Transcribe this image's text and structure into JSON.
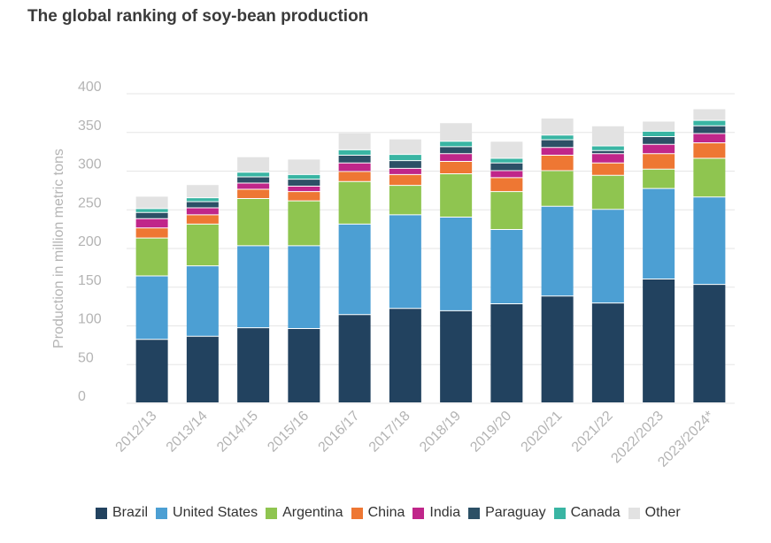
{
  "title": "The global ranking of soy-bean production",
  "chart_data": {
    "type": "bar",
    "stacked": true,
    "title": "The global ranking of soy-bean production",
    "xlabel": "",
    "ylabel": "Production in million metric tons",
    "ylim": [
      0,
      400
    ],
    "yticks": [
      0,
      50,
      100,
      150,
      200,
      250,
      300,
      350,
      400
    ],
    "grid": true,
    "legend_position": "bottom",
    "categories": [
      "2012/13",
      "2013/14",
      "2014/15",
      "2015/16",
      "2016/17",
      "2017/18",
      "2018/19",
      "2019/20",
      "2020/21",
      "2021/22",
      "2022/2023",
      "2023/2024*"
    ],
    "series": [
      {
        "name": "Brazil",
        "color": "#22425f",
        "values": [
          82,
          86,
          97,
          96,
          114,
          122,
          119,
          128,
          138,
          129,
          160,
          153
        ]
      },
      {
        "name": "United States",
        "color": "#4c9fd3",
        "values": [
          82,
          91,
          106,
          107,
          117,
          121,
          121,
          96,
          116,
          121,
          117,
          113
        ]
      },
      {
        "name": "Argentina",
        "color": "#8fc550",
        "values": [
          49,
          54,
          61,
          58,
          55,
          38,
          56,
          49,
          46,
          44,
          25,
          50
        ]
      },
      {
        "name": "China",
        "color": "#ee7733",
        "values": [
          13,
          12,
          12,
          12,
          13,
          14,
          16,
          18,
          20,
          16,
          20,
          20
        ]
      },
      {
        "name": "India",
        "color": "#c0268a",
        "values": [
          12,
          9,
          8,
          7,
          11,
          8,
          10,
          9,
          10,
          12,
          12,
          12
        ]
      },
      {
        "name": "Paraguay",
        "color": "#2c5066",
        "values": [
          8,
          8,
          8,
          9,
          10,
          10,
          9,
          10,
          10,
          4,
          10,
          10
        ]
      },
      {
        "name": "Canada",
        "color": "#39b5a3",
        "values": [
          5,
          5,
          6,
          6,
          7,
          8,
          7,
          6,
          6,
          6,
          7,
          7
        ]
      },
      {
        "name": "Other",
        "color": "#e2e2e2",
        "values": [
          16,
          17,
          20,
          20,
          22,
          20,
          24,
          22,
          22,
          26,
          13,
          15
        ]
      }
    ]
  },
  "colors": {
    "grid": "#e6e6e6",
    "axis_text": "#b4b4b4",
    "title_text": "#3a3a3a"
  }
}
